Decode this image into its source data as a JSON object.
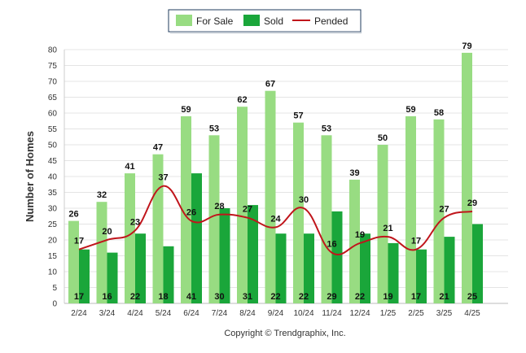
{
  "chart_data": {
    "type": "bar",
    "categories": [
      "2/24",
      "3/24",
      "4/24",
      "5/24",
      "6/24",
      "7/24",
      "8/24",
      "9/24",
      "10/24",
      "11/24",
      "12/24",
      "1/25",
      "2/25",
      "3/25",
      "4/25"
    ],
    "series": [
      {
        "name": "For Sale",
        "kind": "bar",
        "color": "#98dc82",
        "values": [
          26,
          32,
          41,
          47,
          59,
          53,
          62,
          67,
          57,
          53,
          39,
          50,
          59,
          58,
          79
        ]
      },
      {
        "name": "Sold",
        "kind": "bar",
        "color": "#1aa63a",
        "values": [
          17,
          16,
          22,
          18,
          41,
          30,
          31,
          22,
          22,
          29,
          22,
          19,
          17,
          21,
          25
        ]
      },
      {
        "name": "Pended",
        "kind": "line",
        "color": "#c0151b",
        "values": [
          17,
          20,
          23,
          37,
          26,
          28,
          27,
          24,
          30,
          16,
          19,
          21,
          17,
          27,
          29
        ]
      }
    ],
    "title": "",
    "xlabel": "",
    "ylabel": "Number of Homes",
    "ylim": [
      0,
      80
    ],
    "yticks": [
      0,
      5,
      10,
      15,
      20,
      25,
      30,
      35,
      40,
      45,
      50,
      55,
      60,
      65,
      70,
      75,
      80
    ],
    "grid": true,
    "legend_position": "top-center"
  },
  "footer": {
    "copyright": "Copyright © Trendgraphix, Inc."
  }
}
